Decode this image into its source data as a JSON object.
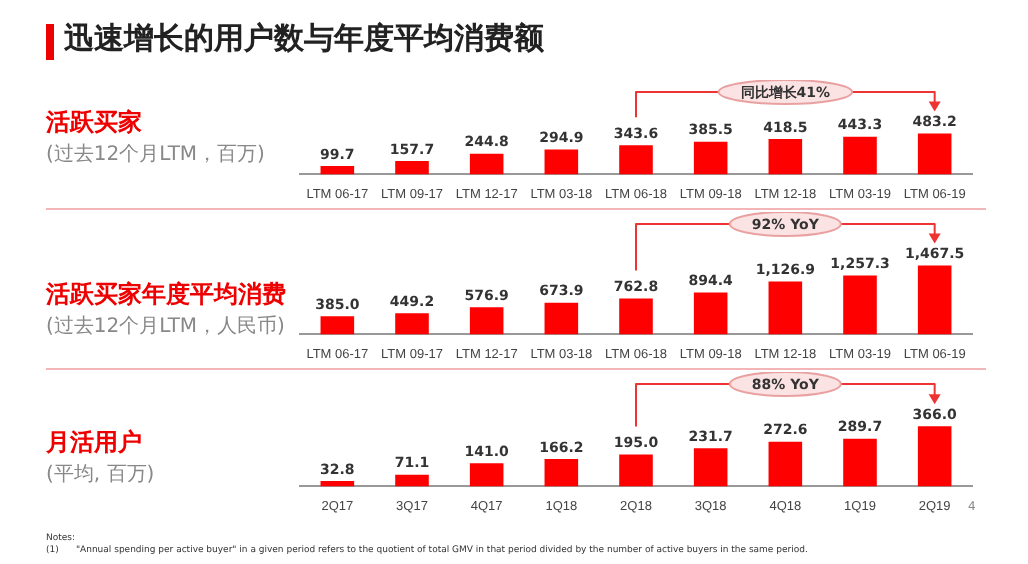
{
  "chart_data": [
    {
      "type": "bar",
      "title": "迅速增长的用户数与年度平均消费额",
      "ylabel": "活跃买家",
      "categories": [
        "LTM 06-17",
        "LTM 09-17",
        "LTM 12-17",
        "LTM 03-18",
        "LTM 06-18",
        "LTM 09-18",
        "LTM 12-18",
        "LTM 03-19",
        "LTM 06-19"
      ],
      "values": [
        99.7,
        157.7,
        244.8,
        294.9,
        343.6,
        385.5,
        418.5,
        443.3,
        483.2
      ],
      "color": "#ff0000",
      "ylim": [
        0,
        500
      ],
      "data_labels": true,
      "grid": false,
      "legend": false,
      "annotations": [
        "同比增长41%",
        "(过去12个月LTM，百万)"
      ]
    },
    {
      "type": "bar",
      "ylabel": "活跃买家年度平均消费",
      "categories": [
        "LTM 06-17",
        "LTM 09-17",
        "LTM 12-17",
        "LTM 03-18",
        "LTM 06-18",
        "LTM 09-18",
        "LTM 12-18",
        "LTM 03-19",
        "LTM 06-19"
      ],
      "values": [
        385.0,
        449.2,
        576.9,
        673.9,
        762.8,
        894.4,
        1126.9,
        1257.3,
        1467.5
      ],
      "value_labels": [
        "385.0",
        "449.2",
        "576.9",
        "673.9",
        "762.8",
        "894.4",
        "1,126.9",
        "1,257.3",
        "1,467.5"
      ],
      "color": "#ff0000",
      "ylim": [
        0,
        1500
      ],
      "grid": false,
      "legend": false,
      "annotations": [
        "92% YoY",
        "(过去12个月LTM，人民币)"
      ]
    },
    {
      "type": "bar",
      "ylabel": "月活用户",
      "categories": [
        "2Q17",
        "3Q17",
        "4Q17",
        "1Q18",
        "2Q18",
        "3Q18",
        "4Q18",
        "1Q19",
        "2Q19"
      ],
      "values": [
        32.8,
        71.1,
        141.0,
        166.2,
        195.0,
        231.7,
        272.6,
        289.7,
        366.0
      ],
      "value_labels": [
        "32.8",
        "71.1",
        "141.0",
        "166.2",
        "195.0",
        "231.7",
        "272.6",
        "289.7",
        "366.0"
      ],
      "color": "#ff0000",
      "ylim": [
        0,
        380
      ],
      "grid": false,
      "legend": false,
      "annotations": [
        "88% YoY",
        "(平均, 百万)",
        "Notes:",
        "(1)      \"Annual spending per active buyer\" in a given period refers to the quotient of total GMV in that period divided by the number of active buyers in the same period.",
        "4"
      ]
    }
  ]
}
